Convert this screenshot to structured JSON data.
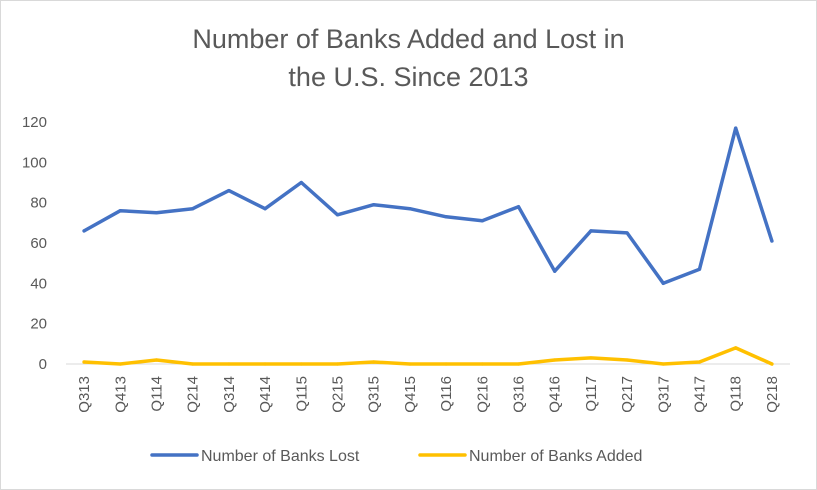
{
  "chart_data": {
    "type": "line",
    "title_line1": "Number of Banks Added and Lost in",
    "title_line2": "the U.S. Since 2013",
    "categories": [
      "Q313",
      "Q413",
      "Q114",
      "Q214",
      "Q314",
      "Q414",
      "Q115",
      "Q215",
      "Q315",
      "Q415",
      "Q116",
      "Q216",
      "Q316",
      "Q416",
      "Q117",
      "Q217",
      "Q317",
      "Q417",
      "Q118",
      "Q218"
    ],
    "series": [
      {
        "name": "Number of Banks Lost",
        "color": "#4472c4",
        "values": [
          66,
          76,
          75,
          77,
          86,
          77,
          90,
          74,
          79,
          77,
          73,
          71,
          78,
          46,
          66,
          65,
          40,
          47,
          117,
          61
        ]
      },
      {
        "name": "Number of Banks Added",
        "color": "#ffc000",
        "values": [
          1,
          0,
          2,
          0,
          0,
          0,
          0,
          0,
          1,
          0,
          0,
          0,
          0,
          2,
          3,
          2,
          0,
          1,
          8,
          0
        ]
      }
    ],
    "yticks": [
      "0",
      "20",
      "40",
      "60",
      "80",
      "100",
      "120"
    ],
    "ylim": [
      0,
      120
    ],
    "grid": false,
    "legend_position": "bottom"
  }
}
